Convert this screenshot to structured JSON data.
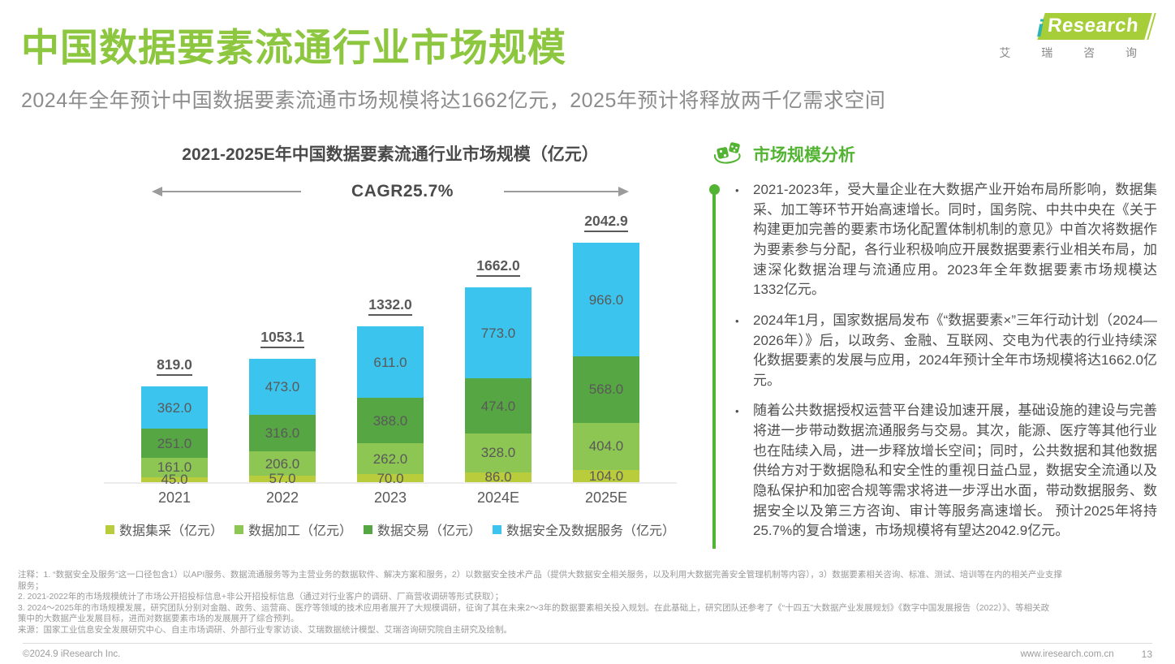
{
  "header": {
    "title": "中国数据要素流通行业市场规模",
    "subtitle": "2024年全年预计中国数据要素流通市场规模将达1662亿元，2025年预计将释放两千亿需求空间",
    "logo": {
      "brand_i": "i",
      "brand": "Research",
      "brand_cn": "艾 瑞 咨 询"
    }
  },
  "chart_data": {
    "type": "bar",
    "stacked": true,
    "title": "2021-2025E年中国数据要素流通行业市场规模（亿元）",
    "cagr_label": "CAGR25.7%",
    "categories": [
      "2021",
      "2022",
      "2023",
      "2024E",
      "2025E"
    ],
    "totals": [
      819.0,
      1053.1,
      1332.0,
      1662.0,
      2042.9
    ],
    "series": [
      {
        "name": "数据集采（亿元）",
        "color": "#b9cd3c",
        "values": [
          45.0,
          57.0,
          70.0,
          86.0,
          104.0
        ]
      },
      {
        "name": "数据加工（亿元）",
        "color": "#8dc653",
        "values": [
          161.0,
          206.0,
          262.0,
          328.0,
          404.0
        ]
      },
      {
        "name": "数据交易（亿元）",
        "color": "#57a644",
        "values": [
          251.0,
          316.0,
          388.0,
          474.0,
          568.0
        ]
      },
      {
        "name": "数据安全及数据服务（亿元）",
        "color": "#3bc4ee",
        "values": [
          362.0,
          473.0,
          611.0,
          773.0,
          966.0
        ]
      }
    ],
    "ylim": [
      0,
      2042.9
    ],
    "grid": false,
    "legend_position": "bottom",
    "label_color": "#595959"
  },
  "analysis": {
    "title": "市场规模分析",
    "accent_color": "#53b332",
    "bullets": [
      "2021-2023年，受大量企业在大数据产业开始布局所影响，数据集采、加工等环节开始高速增长。同时，国务院、中共中央在《关于构建更加完善的要素市场化配置体制机制的意见》中首次将数据作为要素参与分配，各行业积极响应开展数据要素行业相关布局，加速深化数据治理与流通应用。2023年全年数据要素市场规模达1332亿元。",
      "2024年1月，国家数据局发布《“数据要素×”三年行动计划（2024—2026年）》后，以政务、金融、互联网、交电为代表的行业持续深化数据要素的发展与应用，2024年预计全年市场规模将达1662.0亿元。",
      "随着公共数据授权运营平台建设加速开展，基础设施的建设与完善将进一步带动数据流通服务与交易。其次，能源、医疗等其他行业也在陆续入局，进一步释放增长空间；同时，公共数据和其他数据供给方对于数据隐私和安全性的重视日益凸显，数据安全流通以及隐私保护和加密合规等需求将进一步浮出水面，带动数据服务、数据安全以及第三方咨询、审计等服务高速增长。 预计2025年将持25.7%的复合增速，市场规模将有望达2042.9亿元。"
    ]
  },
  "notes": {
    "lines": [
      "注释：1. “数据安全及服务”这一口径包含1）以API服务、数据流通服务等为主营业务的数据软件、解决方案和服务，2）以数据安全技术产品（提供大数据安全相关服务，以及利用大数据完善安全管理机制等内容），3）数据要素相关咨询、标准、测试、培训等在内的相关产业支撑",
      "服务；",
      "2. 2021-2022年的市场规模统计了市场公开招投标信息+非公开招投标信息（通过对行业客户的调研、厂商营收调研等形式获取）；",
      "3. 2024～2025年的市场规模发展，研究团队分别对金融、政务、运营商、医疗等领域的技术应用者展开了大规模调研，征询了其在未来2～3年的数据要素相关投入规划。在此基础上，研究团队还参考了《“十四五”大数据产业发展规划》《数字中国发展报告（2022）》、等相关政",
      "策中的大数据产业发展目标，进而对数据要素市场的发展展开了综合预判。",
      "来源：国家工业信息安全发展研究中心、自主市场调研、外部行业专家访谈、艾瑞数据统计模型、艾瑞咨询研究院自主研究及绘制。"
    ]
  },
  "footer": {
    "copyright": "©2024.9 iResearch Inc.",
    "website": "www.iresearch.com.cn",
    "page": "13"
  }
}
